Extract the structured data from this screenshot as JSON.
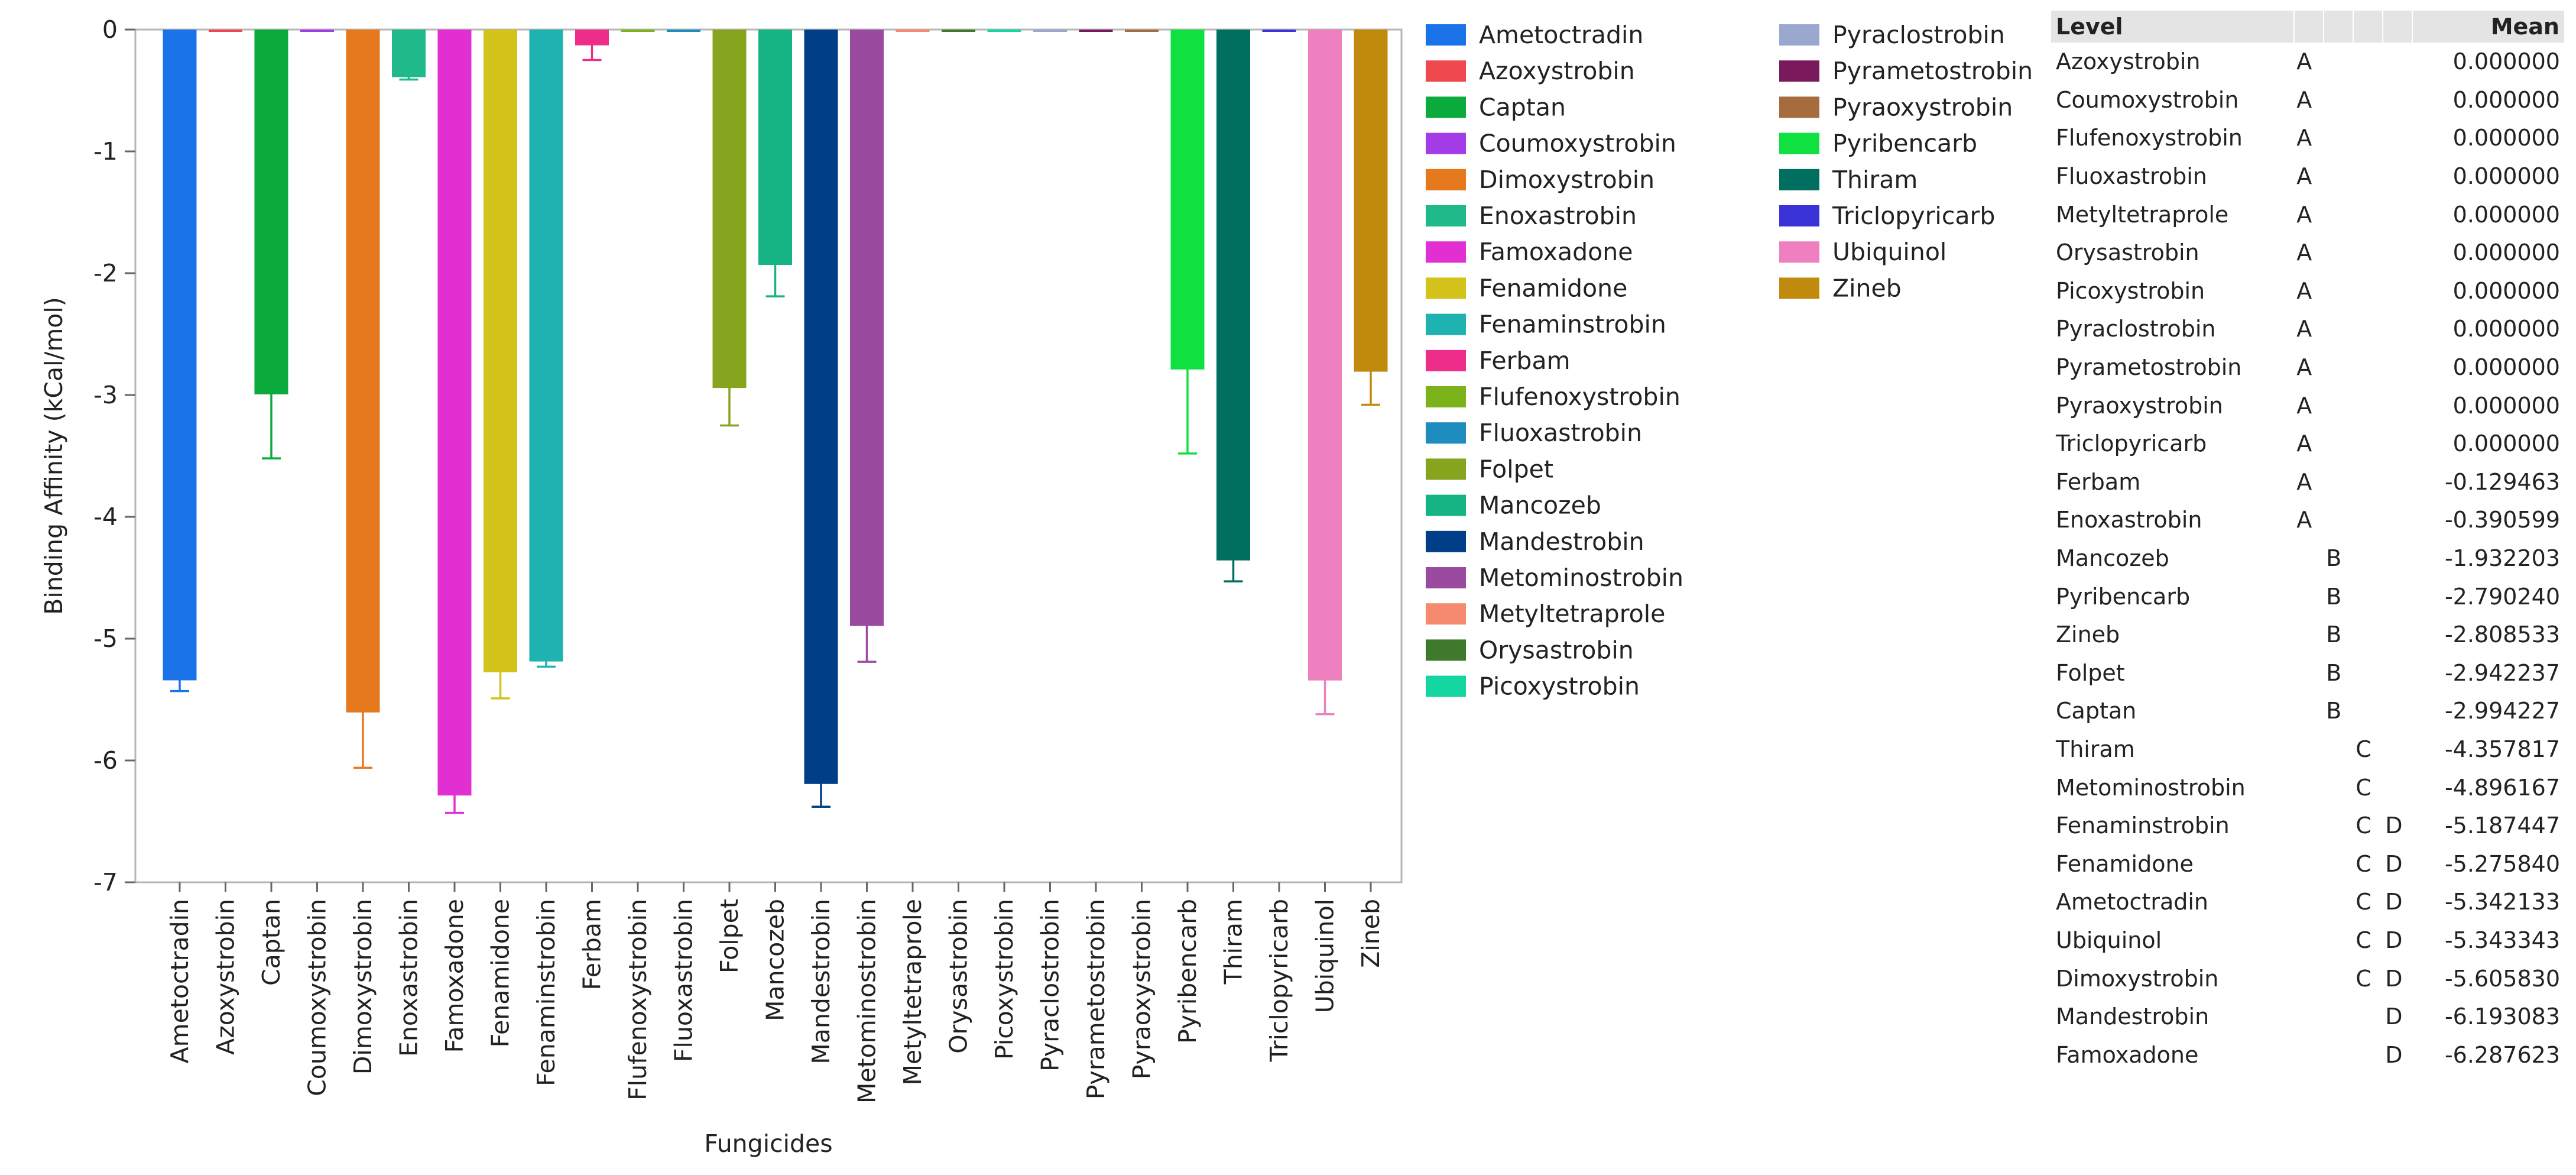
{
  "chart_data": {
    "type": "bar",
    "title": "",
    "xlabel": "Fungicides",
    "ylabel": "Binding Affinity (kCal/mol)",
    "ylim": [
      -7,
      0
    ],
    "yticks": [
      0,
      -1,
      -2,
      -3,
      -4,
      -5,
      -6,
      -7
    ],
    "categories": [
      "Ametoctradin",
      "Azoxystrobin",
      "Captan",
      "Coumoxystrobin",
      "Dimoxystrobin",
      "Enoxastrobin",
      "Famoxadone",
      "Fenamidone",
      "Fenaminstrobin",
      "Ferbam",
      "Flufenoxystrobin",
      "Fluoxastrobin",
      "Folpet",
      "Mancozeb",
      "Mandestrobin",
      "Metominostrobin",
      "Metyltetraprole",
      "Orysastrobin",
      "Picoxystrobin",
      "Pyraclostrobin",
      "Pyrametostrobin",
      "Pyraoxystrobin",
      "Pyribencarb",
      "Thiram",
      "Triclopyricarb",
      "Ubiquinol",
      "Zineb"
    ],
    "values": [
      -5.342133,
      0,
      -2.994227,
      0,
      -5.60583,
      -0.390599,
      -6.287623,
      -5.27584,
      -5.187447,
      -0.129463,
      0,
      0,
      -2.942237,
      -1.932203,
      -6.193083,
      -4.896167,
      0,
      0,
      0,
      0,
      0,
      0,
      -2.79024,
      -4.357817,
      0,
      -5.343343,
      -2.808533
    ],
    "error_low": [
      -5.43,
      0,
      -3.52,
      0,
      -6.06,
      -0.41,
      -6.43,
      -5.49,
      -5.23,
      -0.25,
      0,
      0,
      -3.25,
      -2.19,
      -6.38,
      -5.19,
      0,
      0,
      0,
      0,
      0,
      0,
      -3.48,
      -4.53,
      0,
      -5.62,
      -3.08
    ],
    "error_high": [
      -5.27,
      0,
      -2.48,
      0,
      -5.17,
      -0.37,
      -6.16,
      -5.06,
      -5.15,
      -0.01,
      0,
      0,
      -2.64,
      -1.67,
      -6.02,
      -4.61,
      0,
      0,
      0,
      0,
      0,
      0,
      -2.1,
      -4.19,
      0,
      -5.07,
      -2.54
    ],
    "colors": [
      "#1a73e8",
      "#f0484f",
      "#0aaa3c",
      "#a33ce6",
      "#e6791e",
      "#1fb98a",
      "#e12fd2",
      "#d3c21a",
      "#1eb3b0",
      "#ec2e8a",
      "#7cb21a",
      "#1f8cc0",
      "#86a41e",
      "#16b484",
      "#003f87",
      "#9a4ba0",
      "#f58a6e",
      "#3f7a2c",
      "#14d6a0",
      "#9aa8d0",
      "#7a1a5c",
      "#a66c3e",
      "#10e040",
      "#006f5f",
      "#3a34d8",
      "#ee80c0",
      "#c08a0c"
    ],
    "legend": [
      {
        "label": "Ametoctradin",
        "color": "#1a73e8"
      },
      {
        "label": "Azoxystrobin",
        "color": "#f0484f"
      },
      {
        "label": "Captan",
        "color": "#0aaa3c"
      },
      {
        "label": "Coumoxystrobin",
        "color": "#a33ce6"
      },
      {
        "label": "Dimoxystrobin",
        "color": "#e6791e"
      },
      {
        "label": "Enoxastrobin",
        "color": "#1fb98a"
      },
      {
        "label": "Famoxadone",
        "color": "#e12fd2"
      },
      {
        "label": "Fenamidone",
        "color": "#d3c21a"
      },
      {
        "label": "Fenaminstrobin",
        "color": "#1eb3b0"
      },
      {
        "label": "Ferbam",
        "color": "#ec2e8a"
      },
      {
        "label": "Flufenoxystrobin",
        "color": "#7cb21a"
      },
      {
        "label": "Fluoxastrobin",
        "color": "#1f8cc0"
      },
      {
        "label": "Folpet",
        "color": "#86a41e"
      },
      {
        "label": "Mancozeb",
        "color": "#16b484"
      },
      {
        "label": "Mandestrobin",
        "color": "#003f87"
      },
      {
        "label": "Metominostrobin",
        "color": "#9a4ba0"
      },
      {
        "label": "Metyltetraprole",
        "color": "#f58a6e"
      },
      {
        "label": "Orysastrobin",
        "color": "#3f7a2c"
      },
      {
        "label": "Picoxystrobin",
        "color": "#14d6a0"
      },
      {
        "label": "Pyraclostrobin",
        "color": "#9aa8d0"
      },
      {
        "label": "Pyrametostrobin",
        "color": "#7a1a5c"
      },
      {
        "label": "Pyraoxystrobin",
        "color": "#a66c3e"
      },
      {
        "label": "Pyribencarb",
        "color": "#10e040"
      },
      {
        "label": "Thiram",
        "color": "#006f5f"
      },
      {
        "label": "Triclopyricarb",
        "color": "#3a34d8"
      },
      {
        "label": "Ubiquinol",
        "color": "#ee80c0"
      },
      {
        "label": "Zineb",
        "color": "#c08a0c"
      }
    ]
  },
  "table": {
    "headers": {
      "level": "Level",
      "mean": "Mean"
    },
    "rows": [
      {
        "level": "Azoxystrobin",
        "g1": "A",
        "g2": "",
        "g3": "",
        "g4": "",
        "mean": "0.000000"
      },
      {
        "level": "Coumoxystrobin",
        "g1": "A",
        "g2": "",
        "g3": "",
        "g4": "",
        "mean": "0.000000"
      },
      {
        "level": "Flufenoxystrobin",
        "g1": "A",
        "g2": "",
        "g3": "",
        "g4": "",
        "mean": "0.000000"
      },
      {
        "level": "Fluoxastrobin",
        "g1": "A",
        "g2": "",
        "g3": "",
        "g4": "",
        "mean": "0.000000"
      },
      {
        "level": "Metyltetraprole",
        "g1": "A",
        "g2": "",
        "g3": "",
        "g4": "",
        "mean": "0.000000"
      },
      {
        "level": "Orysastrobin",
        "g1": "A",
        "g2": "",
        "g3": "",
        "g4": "",
        "mean": "0.000000"
      },
      {
        "level": "Picoxystrobin",
        "g1": "A",
        "g2": "",
        "g3": "",
        "g4": "",
        "mean": "0.000000"
      },
      {
        "level": "Pyraclostrobin",
        "g1": "A",
        "g2": "",
        "g3": "",
        "g4": "",
        "mean": "0.000000"
      },
      {
        "level": "Pyrametostrobin",
        "g1": "A",
        "g2": "",
        "g3": "",
        "g4": "",
        "mean": "0.000000"
      },
      {
        "level": "Pyraoxystrobin",
        "g1": "A",
        "g2": "",
        "g3": "",
        "g4": "",
        "mean": "0.000000"
      },
      {
        "level": "Triclopyricarb",
        "g1": "A",
        "g2": "",
        "g3": "",
        "g4": "",
        "mean": "0.000000"
      },
      {
        "level": "Ferbam",
        "g1": "A",
        "g2": "",
        "g3": "",
        "g4": "",
        "mean": "-0.129463"
      },
      {
        "level": "Enoxastrobin",
        "g1": "A",
        "g2": "",
        "g3": "",
        "g4": "",
        "mean": "-0.390599"
      },
      {
        "level": "Mancozeb",
        "g1": "",
        "g2": "B",
        "g3": "",
        "g4": "",
        "mean": "-1.932203"
      },
      {
        "level": "Pyribencarb",
        "g1": "",
        "g2": "B",
        "g3": "",
        "g4": "",
        "mean": "-2.790240"
      },
      {
        "level": "Zineb",
        "g1": "",
        "g2": "B",
        "g3": "",
        "g4": "",
        "mean": "-2.808533"
      },
      {
        "level": "Folpet",
        "g1": "",
        "g2": "B",
        "g3": "",
        "g4": "",
        "mean": "-2.942237"
      },
      {
        "level": "Captan",
        "g1": "",
        "g2": "B",
        "g3": "",
        "g4": "",
        "mean": "-2.994227"
      },
      {
        "level": "Thiram",
        "g1": "",
        "g2": "",
        "g3": "C",
        "g4": "",
        "mean": "-4.357817"
      },
      {
        "level": "Metominostrobin",
        "g1": "",
        "g2": "",
        "g3": "C",
        "g4": "",
        "mean": "-4.896167"
      },
      {
        "level": "Fenaminstrobin",
        "g1": "",
        "g2": "",
        "g3": "C",
        "g4": "D",
        "mean": "-5.187447"
      },
      {
        "level": "Fenamidone",
        "g1": "",
        "g2": "",
        "g3": "C",
        "g4": "D",
        "mean": "-5.275840"
      },
      {
        "level": "Ametoctradin",
        "g1": "",
        "g2": "",
        "g3": "C",
        "g4": "D",
        "mean": "-5.342133"
      },
      {
        "level": "Ubiquinol",
        "g1": "",
        "g2": "",
        "g3": "C",
        "g4": "D",
        "mean": "-5.343343"
      },
      {
        "level": "Dimoxystrobin",
        "g1": "",
        "g2": "",
        "g3": "C",
        "g4": "D",
        "mean": "-5.605830"
      },
      {
        "level": "Mandestrobin",
        "g1": "",
        "g2": "",
        "g3": "",
        "g4": "D",
        "mean": "-6.193083"
      },
      {
        "level": "Famoxadone",
        "g1": "",
        "g2": "",
        "g3": "",
        "g4": "D",
        "mean": "-6.287623"
      }
    ]
  }
}
